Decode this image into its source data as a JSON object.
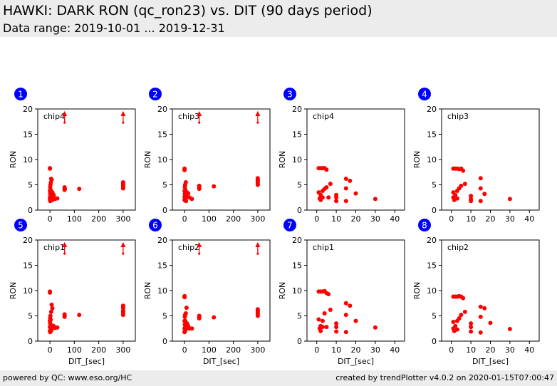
{
  "header": {
    "title": "HAWKI: DARK RON (qc_ron23) vs. DIT (90 days period)",
    "subtitle": "Data range: 2019-10-01 ... 2019-12-31"
  },
  "footer": {
    "left": "powered by QC: www.eso.org/HC",
    "right": "created by trendPlotter v4.0.2 on 2020-01-15T07:00:47"
  },
  "colors": {
    "marker": "#ff0000",
    "badge": "#0000ff",
    "badge_text": "#ffffff"
  },
  "chart_data": [
    {
      "type": "scatter",
      "badge": "1",
      "label": "chip4",
      "xlabel": "",
      "ylabel": "RON",
      "xlim": [
        -50,
        350
      ],
      "ylim": [
        0,
        20
      ],
      "xticks": [
        0,
        100,
        200,
        300
      ],
      "yticks": [
        0,
        5,
        10,
        15,
        20
      ],
      "x": [
        0,
        0,
        0,
        0,
        0,
        1,
        1,
        1,
        2,
        2,
        2,
        3,
        3,
        4,
        4,
        5,
        5,
        6,
        7,
        8,
        10,
        10,
        10,
        15,
        15,
        20,
        30,
        60,
        60,
        60,
        61,
        120,
        300,
        300,
        300,
        300,
        300,
        300
      ],
      "y": [
        8.2,
        8.3,
        3.8,
        2.5,
        2.2,
        1.8,
        3.2,
        4.5,
        2.1,
        3.5,
        5.0,
        2.8,
        4.0,
        2.3,
        5.5,
        6.2,
        3.0,
        2.4,
        6.0,
        2.6,
        2.3,
        3.5,
        2.0,
        3.0,
        2.8,
        2.2,
        2.3,
        4.3,
        4.0,
        4.5,
        4.2,
        4.2,
        5.0,
        4.5,
        5.5,
        4.8,
        4.3,
        5.2
      ],
      "arrows_up_x": [
        60,
        300
      ]
    },
    {
      "type": "scatter",
      "badge": "2",
      "label": "chip3",
      "xlabel": "",
      "ylabel": "RON",
      "xlim": [
        -50,
        350
      ],
      "ylim": [
        0,
        20
      ],
      "xticks": [
        0,
        100,
        200,
        300
      ],
      "yticks": [
        0,
        5,
        10,
        15,
        20
      ],
      "x": [
        0,
        0,
        0,
        0,
        0,
        1,
        1,
        2,
        2,
        3,
        3,
        4,
        5,
        5,
        6,
        8,
        10,
        15,
        20,
        30,
        60,
        60,
        60,
        120,
        300,
        300,
        300,
        300,
        300,
        300
      ],
      "y": [
        8.2,
        7.9,
        3.8,
        2.6,
        2.0,
        3.2,
        4.5,
        1.9,
        5.0,
        2.8,
        4.0,
        2.2,
        5.5,
        3.0,
        1.8,
        2.6,
        3.5,
        3.3,
        2.5,
        2.2,
        4.5,
        4.2,
        4.8,
        4.7,
        5.5,
        6.0,
        5.2,
        6.3,
        5.0,
        5.8
      ],
      "arrows_up_x": [
        60,
        300
      ]
    },
    {
      "type": "scatter",
      "badge": "3",
      "label": "chip4",
      "xlabel": "",
      "ylabel": "RON",
      "xlim": [
        -5,
        45
      ],
      "ylim": [
        0,
        20
      ],
      "xticks": [
        0,
        10,
        20,
        30,
        40
      ],
      "yticks": [
        0,
        5,
        10,
        15,
        20
      ],
      "x": [
        1,
        1,
        1.5,
        2,
        2,
        2,
        3,
        3,
        3,
        4,
        4,
        5,
        5,
        6,
        7,
        10,
        10,
        10,
        15,
        15,
        15,
        17,
        20,
        30
      ],
      "y": [
        8.3,
        3.5,
        2.3,
        8.3,
        3.0,
        2.0,
        8.3,
        3.8,
        2.5,
        8.3,
        4.2,
        8.0,
        4.5,
        2.5,
        5.2,
        3.0,
        2.5,
        1.8,
        6.2,
        4.3,
        1.8,
        5.8,
        3.3,
        2.2
      ],
      "arrows_up_x": []
    },
    {
      "type": "scatter",
      "badge": "4",
      "label": "chip3",
      "xlabel": "",
      "ylabel": "RON",
      "xlim": [
        -5,
        45
      ],
      "ylim": [
        0,
        20
      ],
      "xticks": [
        0,
        10,
        20,
        30,
        40
      ],
      "yticks": [
        0,
        5,
        10,
        15,
        20
      ],
      "x": [
        1,
        1,
        1,
        1.5,
        2,
        2,
        3,
        3,
        3,
        4,
        4,
        5,
        5,
        6,
        7,
        10,
        10,
        10,
        15,
        15,
        15,
        17,
        30
      ],
      "y": [
        8.2,
        3.5,
        2.5,
        2.0,
        8.2,
        3.0,
        8.2,
        3.8,
        2.3,
        8.1,
        4.3,
        8.2,
        4.8,
        7.8,
        5.2,
        2.8,
        2.2,
        1.8,
        6.3,
        4.3,
        1.8,
        3.2,
        2.2
      ],
      "arrows_up_x": []
    },
    {
      "type": "scatter",
      "badge": "5",
      "label": "chip1",
      "xlabel": "DIT_[sec]",
      "ylabel": "RON",
      "xlim": [
        -50,
        350
      ],
      "ylim": [
        0,
        20
      ],
      "xticks": [
        0,
        100,
        200,
        300
      ],
      "yticks": [
        0,
        5,
        10,
        15,
        20
      ],
      "x": [
        0,
        0,
        0,
        0,
        0,
        1,
        1,
        1,
        2,
        2,
        3,
        3,
        4,
        5,
        5,
        6,
        7,
        8,
        10,
        15,
        20,
        30,
        60,
        60,
        60,
        120,
        300,
        300,
        300,
        300,
        300,
        300,
        300
      ],
      "y": [
        9.8,
        9.6,
        4.0,
        2.8,
        2.0,
        1.8,
        3.5,
        4.5,
        2.2,
        5.0,
        2.6,
        4.2,
        2.0,
        5.8,
        3.2,
        2.3,
        7.2,
        2.5,
        6.5,
        3.0,
        2.6,
        2.7,
        5.0,
        5.3,
        4.8,
        5.2,
        6.5,
        5.5,
        7.0,
        6.0,
        5.2,
        6.8,
        5.8
      ],
      "arrows_up_x": [
        60,
        300
      ]
    },
    {
      "type": "scatter",
      "badge": "6",
      "label": "chip2",
      "xlabel": "DIT_[sec]",
      "ylabel": "RON",
      "xlim": [
        -50,
        350
      ],
      "ylim": [
        0,
        20
      ],
      "xticks": [
        0,
        100,
        200,
        300
      ],
      "yticks": [
        0,
        5,
        10,
        15,
        20
      ],
      "x": [
        0,
        0,
        0,
        0,
        0,
        1,
        1,
        2,
        2,
        3,
        3,
        4,
        5,
        6,
        8,
        10,
        15,
        20,
        30,
        60,
        60,
        60,
        120,
        300,
        300,
        300,
        300,
        300,
        300
      ],
      "y": [
        8.9,
        8.7,
        4.0,
        2.5,
        1.8,
        3.3,
        4.8,
        2.0,
        5.2,
        2.8,
        4.0,
        2.2,
        5.5,
        2.6,
        6.6,
        3.5,
        3.0,
        2.5,
        2.5,
        4.8,
        4.5,
        5.0,
        4.7,
        6.0,
        5.5,
        5.2,
        6.3,
        5.8,
        5.0
      ],
      "arrows_up_x": [
        60,
        300
      ]
    },
    {
      "type": "scatter",
      "badge": "7",
      "label": "chip1",
      "xlabel": "DIT_[sec]",
      "ylabel": "RON",
      "xlim": [
        -5,
        45
      ],
      "ylim": [
        0,
        20
      ],
      "xticks": [
        0,
        10,
        20,
        30,
        40
      ],
      "yticks": [
        0,
        5,
        10,
        15,
        20
      ],
      "x": [
        1,
        1,
        1.5,
        2,
        2,
        2,
        3,
        3,
        3,
        4,
        4,
        5,
        5,
        6,
        7,
        10,
        10,
        10,
        15,
        15,
        15,
        17,
        20,
        30
      ],
      "y": [
        9.8,
        4.3,
        2.5,
        9.8,
        3.0,
        2.0,
        9.8,
        4.0,
        2.8,
        9.9,
        5.5,
        9.5,
        2.8,
        9.3,
        6.2,
        3.5,
        2.8,
        1.9,
        7.5,
        5.2,
        1.8,
        7.0,
        4.0,
        2.7
      ],
      "arrows_up_x": []
    },
    {
      "type": "scatter",
      "badge": "8",
      "label": "chip2",
      "xlabel": "DIT_[sec]",
      "ylabel": "RON",
      "xlim": [
        -5,
        45
      ],
      "ylim": [
        0,
        20
      ],
      "xticks": [
        0,
        10,
        20,
        30,
        40
      ],
      "yticks": [
        0,
        5,
        10,
        15,
        20
      ],
      "x": [
        1,
        1,
        1,
        1.5,
        2,
        2,
        3,
        3,
        3,
        4,
        4,
        5,
        5,
        6,
        7,
        10,
        10,
        10,
        15,
        15,
        15,
        17,
        20,
        30
      ],
      "y": [
        8.8,
        3.8,
        2.5,
        2.0,
        8.8,
        3.0,
        8.8,
        4.0,
        2.3,
        8.9,
        4.5,
        8.8,
        5.2,
        8.5,
        5.8,
        3.5,
        2.8,
        1.9,
        6.8,
        4.8,
        1.7,
        6.5,
        3.6,
        2.4
      ],
      "arrows_up_x": []
    }
  ]
}
